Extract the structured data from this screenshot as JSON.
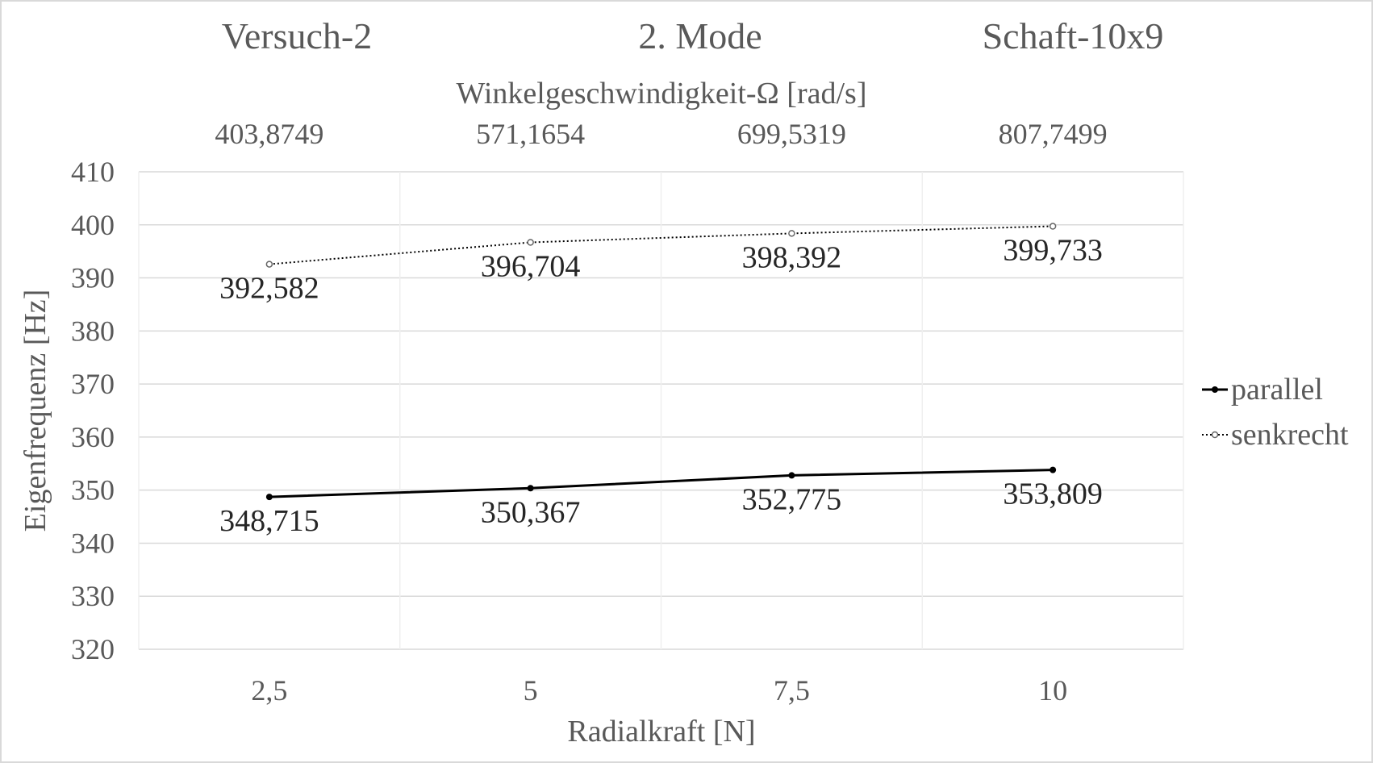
{
  "chart_data": {
    "type": "line",
    "title_parts": [
      "Versuch-2",
      "2. Mode",
      "Schaft-10x9"
    ],
    "secondary_axis": {
      "label": "Winkelgeschwindigkeit-Ω  [rad/s]",
      "tick_labels": [
        "403,8749",
        "571,1654",
        "699,5319",
        "807,7499"
      ]
    },
    "xlabel": "Radialkraft [N]",
    "ylabel": "Eigenfrequenz [Hz]",
    "categories": [
      "2,5",
      "5",
      "7,5",
      "10"
    ],
    "ylim": [
      320,
      410
    ],
    "yticks": [
      320,
      330,
      340,
      350,
      360,
      370,
      380,
      390,
      400,
      410
    ],
    "grid": true,
    "legend_position": "right",
    "series": [
      {
        "name": "parallel",
        "values": [
          348.715,
          350.367,
          352.775,
          353.809
        ],
        "labels": [
          "348,715",
          "350,367",
          "352,775",
          "353,809"
        ],
        "style": "solid",
        "color": "#000000"
      },
      {
        "name": "senkrecht",
        "values": [
          392.582,
          396.704,
          398.392,
          399.733
        ],
        "labels": [
          "392,582",
          "396,704",
          "398,392",
          "399,733"
        ],
        "style": "dotted",
        "color": "#000000"
      }
    ]
  }
}
